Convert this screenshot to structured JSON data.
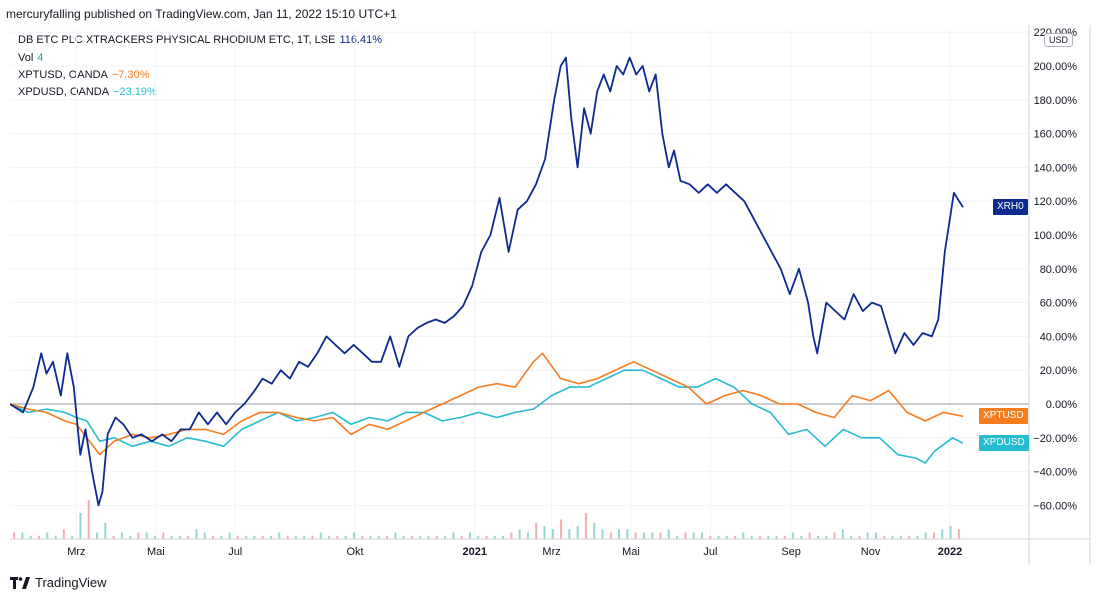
{
  "header": "mercuryfalling published on TradingView.com, Jan 11, 2022 15:10 UTC+1",
  "legend": [
    {
      "name": "DB ETC PLC XTRACKERS PHYSICAL RHODIUM ETC, 1T, LSE",
      "value": "116.41%",
      "color": "#0d2a8f"
    },
    {
      "name": "Vol",
      "value": "4",
      "color": "#26a69a"
    },
    {
      "name": "XPTUSD, OANDA",
      "value": "−7.30%",
      "color": "#f57c1f"
    },
    {
      "name": "XPDUSD, OANDA",
      "value": "−23.19%",
      "color": "#26bcd0"
    }
  ],
  "currency_label": "USD",
  "footer_brand": "TradingView",
  "price_tags": [
    {
      "label": "XRH0",
      "color": "#0d2a8f",
      "value": 116.41
    },
    {
      "label": "XPTUSD",
      "color": "#f57c1f",
      "value": -7.3
    },
    {
      "label": "XPDUSD",
      "color": "#26bcd0",
      "value": -23.19
    }
  ],
  "chart_data": {
    "type": "line",
    "y_unit": "%",
    "ylim": [
      -80,
      220
    ],
    "y_ticks": [
      220,
      200,
      180,
      160,
      140,
      120,
      100,
      80,
      60,
      40,
      20,
      0,
      -20,
      -40,
      -60
    ],
    "y_tick_labels": [
      "220.00%",
      "200.00%",
      "180.00%",
      "160.00%",
      "140.00%",
      "120.00%",
      "100.00%",
      "80.00%",
      "60.00%",
      "40.00%",
      "20.00%",
      "0.00%",
      "−20.00%",
      "−40.00%",
      "−60.00%"
    ],
    "xlim": [
      "2020-01-10",
      "2022-01-11"
    ],
    "x_ticks": [
      {
        "date": "2020-03-01",
        "label": "Mrz"
      },
      {
        "date": "2020-05-01",
        "label": "Mai"
      },
      {
        "date": "2020-07-01",
        "label": "Jul"
      },
      {
        "date": "2020-10-01",
        "label": "Okt"
      },
      {
        "date": "2021-01-01",
        "label": "2021"
      },
      {
        "date": "2021-03-01",
        "label": "Mrz"
      },
      {
        "date": "2021-05-01",
        "label": "Mai"
      },
      {
        "date": "2021-07-01",
        "label": "Jul"
      },
      {
        "date": "2021-09-01",
        "label": "Sep"
      },
      {
        "date": "2021-11-01",
        "label": "Nov"
      },
      {
        "date": "2022-01-01",
        "label": "2022"
      }
    ],
    "series": [
      {
        "name": "XRH0",
        "color": "#0d2a8f",
        "points": [
          [
            "2020-01-10",
            0
          ],
          [
            "2020-01-20",
            -5
          ],
          [
            "2020-01-28",
            10
          ],
          [
            "2020-02-03",
            30
          ],
          [
            "2020-02-07",
            18
          ],
          [
            "2020-02-12",
            25
          ],
          [
            "2020-02-18",
            5
          ],
          [
            "2020-02-23",
            30
          ],
          [
            "2020-02-28",
            10
          ],
          [
            "2020-03-04",
            -30
          ],
          [
            "2020-03-08",
            -15
          ],
          [
            "2020-03-13",
            -40
          ],
          [
            "2020-03-18",
            -60
          ],
          [
            "2020-03-21",
            -52
          ],
          [
            "2020-03-25",
            -18
          ],
          [
            "2020-03-31",
            -8
          ],
          [
            "2020-04-06",
            -12
          ],
          [
            "2020-04-13",
            -20
          ],
          [
            "2020-04-20",
            -18
          ],
          [
            "2020-04-28",
            -22
          ],
          [
            "2020-05-06",
            -18
          ],
          [
            "2020-05-13",
            -22
          ],
          [
            "2020-05-20",
            -15
          ],
          [
            "2020-05-27",
            -15
          ],
          [
            "2020-06-03",
            -5
          ],
          [
            "2020-06-10",
            -12
          ],
          [
            "2020-06-17",
            -5
          ],
          [
            "2020-06-24",
            -12
          ],
          [
            "2020-07-01",
            -5
          ],
          [
            "2020-07-08",
            0
          ],
          [
            "2020-07-15",
            7
          ],
          [
            "2020-07-22",
            15
          ],
          [
            "2020-07-29",
            12
          ],
          [
            "2020-08-05",
            20
          ],
          [
            "2020-08-12",
            15
          ],
          [
            "2020-08-19",
            25
          ],
          [
            "2020-08-26",
            22
          ],
          [
            "2020-09-02",
            30
          ],
          [
            "2020-09-09",
            40
          ],
          [
            "2020-09-16",
            35
          ],
          [
            "2020-09-23",
            30
          ],
          [
            "2020-09-30",
            35
          ],
          [
            "2020-10-07",
            30
          ],
          [
            "2020-10-14",
            25
          ],
          [
            "2020-10-21",
            25
          ],
          [
            "2020-10-28",
            40
          ],
          [
            "2020-11-04",
            22
          ],
          [
            "2020-11-11",
            40
          ],
          [
            "2020-11-18",
            45
          ],
          [
            "2020-11-25",
            48
          ],
          [
            "2020-12-02",
            50
          ],
          [
            "2020-12-09",
            48
          ],
          [
            "2020-12-16",
            52
          ],
          [
            "2020-12-23",
            58
          ],
          [
            "2020-12-30",
            70
          ],
          [
            "2021-01-06",
            90
          ],
          [
            "2021-01-13",
            100
          ],
          [
            "2021-01-20",
            122
          ],
          [
            "2021-01-27",
            90
          ],
          [
            "2021-02-03",
            115
          ],
          [
            "2021-02-10",
            120
          ],
          [
            "2021-02-17",
            130
          ],
          [
            "2021-02-24",
            145
          ],
          [
            "2021-03-03",
            180
          ],
          [
            "2021-03-08",
            200
          ],
          [
            "2021-03-12",
            205
          ],
          [
            "2021-03-16",
            170
          ],
          [
            "2021-03-21",
            140
          ],
          [
            "2021-03-26",
            175
          ],
          [
            "2021-03-31",
            160
          ],
          [
            "2021-04-05",
            185
          ],
          [
            "2021-04-10",
            195
          ],
          [
            "2021-04-15",
            185
          ],
          [
            "2021-04-20",
            200
          ],
          [
            "2021-04-25",
            195
          ],
          [
            "2021-04-30",
            205
          ],
          [
            "2021-05-05",
            195
          ],
          [
            "2021-05-10",
            200
          ],
          [
            "2021-05-15",
            185
          ],
          [
            "2021-05-20",
            195
          ],
          [
            "2021-05-25",
            160
          ],
          [
            "2021-05-30",
            140
          ],
          [
            "2021-06-03",
            150
          ],
          [
            "2021-06-08",
            132
          ],
          [
            "2021-06-15",
            130
          ],
          [
            "2021-06-22",
            125
          ],
          [
            "2021-06-29",
            130
          ],
          [
            "2021-07-06",
            125
          ],
          [
            "2021-07-13",
            130
          ],
          [
            "2021-07-20",
            125
          ],
          [
            "2021-07-27",
            120
          ],
          [
            "2021-08-03",
            110
          ],
          [
            "2021-08-10",
            100
          ],
          [
            "2021-08-17",
            90
          ],
          [
            "2021-08-24",
            80
          ],
          [
            "2021-08-31",
            65
          ],
          [
            "2021-09-07",
            80
          ],
          [
            "2021-09-14",
            60
          ],
          [
            "2021-09-18",
            40
          ],
          [
            "2021-09-21",
            30
          ],
          [
            "2021-09-28",
            60
          ],
          [
            "2021-10-05",
            55
          ],
          [
            "2021-10-12",
            50
          ],
          [
            "2021-10-19",
            65
          ],
          [
            "2021-10-26",
            55
          ],
          [
            "2021-11-02",
            60
          ],
          [
            "2021-11-09",
            58
          ],
          [
            "2021-11-16",
            40
          ],
          [
            "2021-11-20",
            30
          ],
          [
            "2021-11-27",
            42
          ],
          [
            "2021-12-04",
            35
          ],
          [
            "2021-12-11",
            42
          ],
          [
            "2021-12-18",
            40
          ],
          [
            "2021-12-23",
            50
          ],
          [
            "2021-12-28",
            90
          ],
          [
            "2022-01-04",
            125
          ],
          [
            "2022-01-11",
            116.41
          ]
        ]
      },
      {
        "name": "XPTUSD",
        "color": "#f57c1f",
        "points": [
          [
            "2020-01-10",
            0
          ],
          [
            "2020-01-24",
            -3
          ],
          [
            "2020-02-07",
            -5
          ],
          [
            "2020-02-21",
            -10
          ],
          [
            "2020-03-01",
            -12
          ],
          [
            "2020-03-09",
            -20
          ],
          [
            "2020-03-19",
            -30
          ],
          [
            "2020-03-30",
            -22
          ],
          [
            "2020-04-13",
            -18
          ],
          [
            "2020-04-27",
            -20
          ],
          [
            "2020-05-11",
            -18
          ],
          [
            "2020-05-25",
            -15
          ],
          [
            "2020-06-08",
            -15
          ],
          [
            "2020-06-22",
            -18
          ],
          [
            "2020-07-06",
            -10
          ],
          [
            "2020-07-20",
            -5
          ],
          [
            "2020-08-03",
            -5
          ],
          [
            "2020-08-17",
            -8
          ],
          [
            "2020-08-31",
            -10
          ],
          [
            "2020-09-14",
            -8
          ],
          [
            "2020-09-28",
            -18
          ],
          [
            "2020-10-12",
            -12
          ],
          [
            "2020-10-26",
            -15
          ],
          [
            "2020-11-09",
            -10
          ],
          [
            "2020-11-23",
            -5
          ],
          [
            "2020-12-07",
            0
          ],
          [
            "2020-12-21",
            5
          ],
          [
            "2021-01-04",
            10
          ],
          [
            "2021-01-18",
            12
          ],
          [
            "2021-02-01",
            10
          ],
          [
            "2021-02-15",
            25
          ],
          [
            "2021-02-22",
            30
          ],
          [
            "2021-03-08",
            15
          ],
          [
            "2021-03-22",
            12
          ],
          [
            "2021-04-05",
            15
          ],
          [
            "2021-04-19",
            20
          ],
          [
            "2021-05-03",
            25
          ],
          [
            "2021-05-17",
            20
          ],
          [
            "2021-05-31",
            15
          ],
          [
            "2021-06-14",
            10
          ],
          [
            "2021-06-28",
            0
          ],
          [
            "2021-07-12",
            5
          ],
          [
            "2021-07-26",
            8
          ],
          [
            "2021-08-09",
            5
          ],
          [
            "2021-08-23",
            0
          ],
          [
            "2021-09-06",
            0
          ],
          [
            "2021-09-20",
            -5
          ],
          [
            "2021-10-04",
            -8
          ],
          [
            "2021-10-18",
            5
          ],
          [
            "2021-11-01",
            2
          ],
          [
            "2021-11-15",
            8
          ],
          [
            "2021-11-29",
            -5
          ],
          [
            "2021-12-13",
            -10
          ],
          [
            "2021-12-27",
            -5
          ],
          [
            "2022-01-11",
            -7.3
          ]
        ]
      },
      {
        "name": "XPDUSD",
        "color": "#26bcd0",
        "points": [
          [
            "2020-01-10",
            0
          ],
          [
            "2020-01-24",
            -5
          ],
          [
            "2020-02-07",
            -3
          ],
          [
            "2020-02-21",
            -5
          ],
          [
            "2020-03-01",
            -8
          ],
          [
            "2020-03-09",
            -10
          ],
          [
            "2020-03-19",
            -22
          ],
          [
            "2020-03-30",
            -20
          ],
          [
            "2020-04-13",
            -25
          ],
          [
            "2020-04-27",
            -22
          ],
          [
            "2020-05-11",
            -25
          ],
          [
            "2020-05-25",
            -20
          ],
          [
            "2020-06-08",
            -22
          ],
          [
            "2020-06-22",
            -25
          ],
          [
            "2020-07-06",
            -15
          ],
          [
            "2020-07-20",
            -10
          ],
          [
            "2020-08-03",
            -5
          ],
          [
            "2020-08-17",
            -10
          ],
          [
            "2020-08-31",
            -8
          ],
          [
            "2020-09-14",
            -5
          ],
          [
            "2020-09-28",
            -12
          ],
          [
            "2020-10-12",
            -8
          ],
          [
            "2020-10-26",
            -10
          ],
          [
            "2020-11-09",
            -5
          ],
          [
            "2020-11-23",
            -5
          ],
          [
            "2020-12-07",
            -10
          ],
          [
            "2020-12-21",
            -8
          ],
          [
            "2021-01-04",
            -5
          ],
          [
            "2021-01-18",
            -8
          ],
          [
            "2021-02-01",
            -5
          ],
          [
            "2021-02-15",
            -3
          ],
          [
            "2021-03-01",
            5
          ],
          [
            "2021-03-15",
            10
          ],
          [
            "2021-03-29",
            10
          ],
          [
            "2021-04-12",
            15
          ],
          [
            "2021-04-26",
            20
          ],
          [
            "2021-05-10",
            20
          ],
          [
            "2021-05-24",
            15
          ],
          [
            "2021-06-07",
            10
          ],
          [
            "2021-06-21",
            10
          ],
          [
            "2021-07-05",
            15
          ],
          [
            "2021-07-19",
            10
          ],
          [
            "2021-08-02",
            0
          ],
          [
            "2021-08-16",
            -5
          ],
          [
            "2021-08-30",
            -18
          ],
          [
            "2021-09-13",
            -15
          ],
          [
            "2021-09-27",
            -25
          ],
          [
            "2021-10-11",
            -15
          ],
          [
            "2021-10-25",
            -20
          ],
          [
            "2021-11-08",
            -20
          ],
          [
            "2021-11-22",
            -30
          ],
          [
            "2021-12-06",
            -32
          ],
          [
            "2021-12-13",
            -35
          ],
          [
            "2021-12-20",
            -28
          ],
          [
            "2022-01-03",
            -20
          ],
          [
            "2022-01-11",
            -23.19
          ]
        ]
      }
    ],
    "volume_bars": [
      2,
      2,
      1,
      1,
      2,
      1,
      3,
      1,
      8,
      12,
      2,
      5,
      1,
      2,
      1,
      2,
      2,
      1,
      2,
      1,
      1,
      1,
      3,
      2,
      1,
      1,
      2,
      1,
      1,
      1,
      1,
      1,
      2,
      1,
      1,
      1,
      1,
      2,
      1,
      1,
      1,
      2,
      1,
      1,
      1,
      1,
      2,
      1,
      1,
      1,
      1,
      1,
      1,
      2,
      1,
      2,
      1,
      1,
      1,
      1,
      2,
      3,
      2,
      5,
      4,
      3,
      6,
      3,
      4,
      8,
      5,
      3,
      2,
      3,
      3,
      2,
      2,
      2,
      2,
      3,
      1,
      2,
      2,
      2,
      1,
      1,
      1,
      1,
      2,
      1,
      1,
      1,
      1,
      1,
      2,
      1,
      2,
      1,
      1,
      2,
      3,
      1,
      1,
      2,
      2,
      1,
      1,
      1,
      1,
      1,
      2,
      2,
      3,
      4,
      3
    ]
  }
}
